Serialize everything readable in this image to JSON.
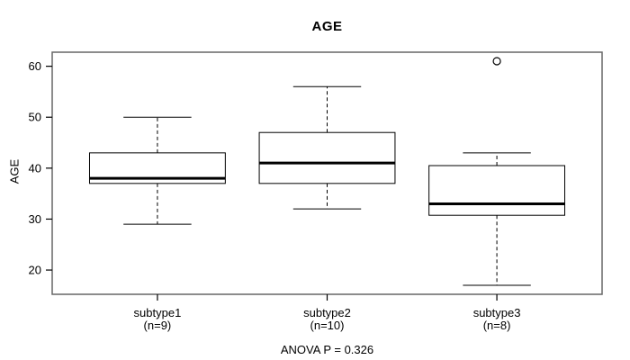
{
  "chart_data": {
    "type": "boxplot",
    "title": "AGE",
    "ylabel": "AGE",
    "xlabel": "",
    "annotation": "ANOVA P = 0.326",
    "yticks": [
      20,
      30,
      40,
      50,
      60
    ],
    "ylim": [
      15.24,
      62.76
    ],
    "xlim": [
      0.38,
      3.62
    ],
    "grid": false,
    "legend": false,
    "groups": [
      {
        "label": "subtype1",
        "n_label": "(n=9)",
        "whisker_low": 29,
        "q1": 37,
        "median": 38,
        "q3": 43,
        "whisker_high": 50,
        "outliers": []
      },
      {
        "label": "subtype2",
        "n_label": "(n=10)",
        "whisker_low": 32,
        "q1": 37,
        "median": 41,
        "q3": 47,
        "whisker_high": 56,
        "outliers": []
      },
      {
        "label": "subtype3",
        "n_label": "(n=8)",
        "whisker_low": 17,
        "q1": 30.75,
        "median": 33,
        "q3": 40.5,
        "whisker_high": 43,
        "outliers": [
          61
        ]
      }
    ],
    "colors": {
      "stroke": "#000000",
      "frame": "#666666",
      "box_fill": "#ffffff",
      "text": "#000000",
      "background": "#ffffff"
    }
  }
}
